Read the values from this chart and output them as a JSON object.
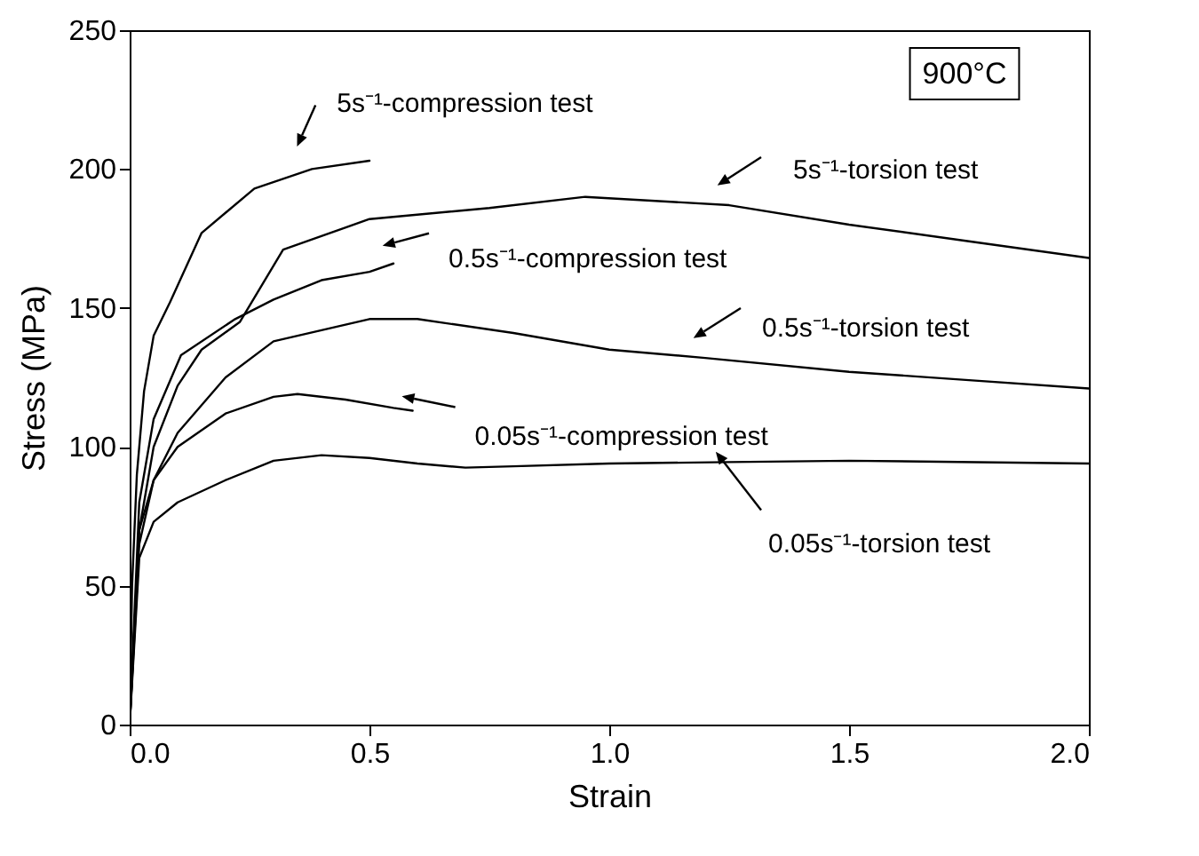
{
  "chart_data": {
    "type": "line",
    "xlabel": "Strain",
    "ylabel": "Stress (MPa)",
    "xlim": [
      0,
      2
    ],
    "xticks": [
      {
        "value": 0,
        "label": "0.0"
      },
      {
        "value": 0.5,
        "label": "0.5"
      },
      {
        "value": 1,
        "label": "1.0"
      },
      {
        "value": 1.5,
        "label": "1.5"
      },
      {
        "value": 2,
        "label": "2.0"
      }
    ],
    "ylim": [
      0,
      250
    ],
    "yticks": [
      0,
      50,
      100,
      150,
      200,
      250
    ],
    "grid": false,
    "legend": false,
    "marker": "none",
    "line_style": "solid",
    "series": [
      {
        "color": "#000000",
        "x": [
          0,
          0.005,
          0.015,
          0.03,
          0.05,
          0.084,
          0.15,
          0.26,
          0.38,
          0.5
        ],
        "values": [
          0,
          50,
          90,
          120,
          140,
          152,
          177,
          193,
          200,
          203
        ]
      },
      {
        "color": "#000000",
        "x": [
          0,
          0.02,
          0.05,
          0.1,
          0.15,
          0.23,
          0.32,
          0.5,
          0.75,
          0.95,
          1.25,
          1.5,
          1.75,
          2.0
        ],
        "values": [
          0,
          70,
          100,
          122,
          135,
          145,
          171,
          182,
          186,
          190,
          187,
          180,
          174,
          168
        ]
      },
      {
        "color": "#000000",
        "x": [
          0,
          0.02,
          0.05,
          0.107,
          0.22,
          0.3,
          0.4,
          0.5,
          0.55
        ],
        "values": [
          0,
          80,
          110,
          133,
          146,
          153,
          160,
          163,
          166
        ]
      },
      {
        "color": "#000000",
        "x": [
          0,
          0.02,
          0.05,
          0.1,
          0.2,
          0.3,
          0.5,
          0.6,
          0.8,
          1.0,
          1.2,
          1.5,
          1.75,
          2.0
        ],
        "values": [
          0,
          65,
          88,
          105,
          125,
          138,
          146,
          146,
          141,
          135,
          132,
          127,
          124,
          121
        ]
      },
      {
        "color": "#000000",
        "x": [
          0,
          0.02,
          0.05,
          0.1,
          0.2,
          0.3,
          0.35,
          0.45,
          0.55,
          0.59
        ],
        "values": [
          0,
          70,
          88,
          100,
          112,
          118,
          119,
          117,
          114,
          113
        ]
      },
      {
        "color": "#000000",
        "x": [
          0,
          0.02,
          0.05,
          0.1,
          0.2,
          0.3,
          0.4,
          0.5,
          0.6,
          0.7,
          0.8,
          1.0,
          1.25,
          1.5,
          2.0
        ],
        "values": [
          0,
          60,
          73,
          80,
          88,
          95,
          97,
          96,
          94,
          92.5,
          93,
          94,
          94.5,
          95,
          94
        ]
      }
    ],
    "annotations": [
      {
        "text": "5s⁻¹-compression test",
        "x": 0.38,
        "y": 200
      },
      {
        "text": "5s⁻¹-torsion test",
        "x": 1.25,
        "y": 187
      },
      {
        "text": "0.5s⁻¹-compression test",
        "x": 0.55,
        "y": 166
      },
      {
        "text": "0.5s⁻¹-torsion test",
        "x": 1.2,
        "y": 132
      },
      {
        "text": "0.05s⁻¹-compression test",
        "x": 0.59,
        "y": 113
      },
      {
        "text": "0.05s⁻¹-torsion test",
        "x": 1.25,
        "y": 94.5
      },
      "900°C"
    ]
  }
}
